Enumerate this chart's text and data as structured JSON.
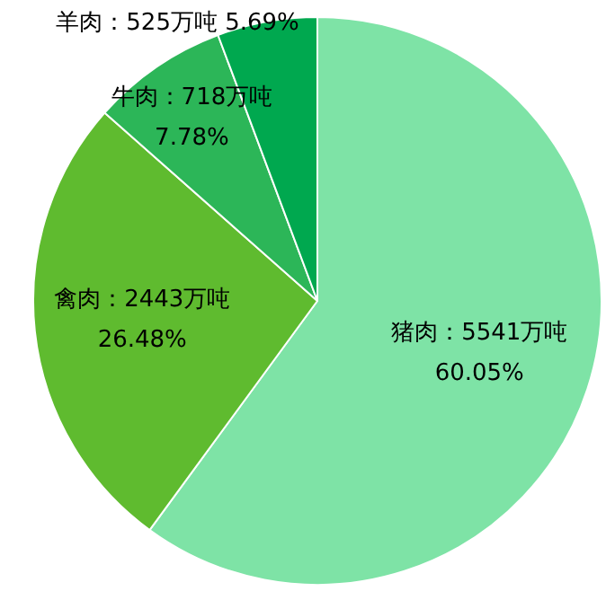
{
  "chart_data": {
    "type": "pie",
    "categories": [
      "猪肉",
      "禽肉",
      "牛肉",
      "羊肉"
    ],
    "values": [
      5541,
      2443,
      718,
      525
    ],
    "colors": [
      "#7ee3a6",
      "#5fbb2f",
      "#2cb658",
      "#00a84f"
    ],
    "value_labels": [
      "5541万吨\n60.05%",
      "2443万吨\n26.48%",
      "718万吨\n7.78%",
      "525万吨 5.69%"
    ]
  }
}
